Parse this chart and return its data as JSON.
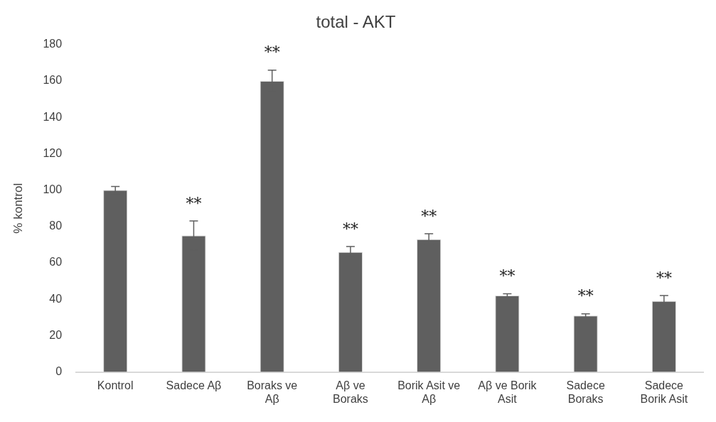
{
  "chart_data": {
    "type": "bar",
    "title": "total - AKT",
    "ylabel": "% kontrol",
    "categories": [
      "Kontrol",
      "Sadece Aβ",
      "Boraks ve Aβ",
      "Aβ ve Boraks",
      "Borik Asit ve Aβ",
      "Aβ ve Borik Asit",
      "Sadece Boraks",
      "Sadece Borik Asit"
    ],
    "values": [
      100,
      75,
      160,
      66,
      73,
      42,
      31,
      39
    ],
    "errors": [
      2,
      8,
      6,
      3,
      3,
      1,
      1,
      3
    ],
    "color": "#5f5f5f",
    "ylim": [
      0,
      180
    ],
    "yticks": [
      0,
      20,
      40,
      60,
      80,
      100,
      120,
      140,
      160,
      180
    ],
    "grid": false,
    "legend": false,
    "annotations": [
      {
        "text": "**",
        "x": "Sadece Aβ",
        "y": 83
      },
      {
        "text": "**",
        "x": "Boraks ve Aβ",
        "y": 166
      },
      {
        "text": "**",
        "x": "Aβ ve Boraks",
        "y": 69
      },
      {
        "text": "**",
        "x": "Borik Asit ve Aβ",
        "y": 76
      },
      {
        "text": "**",
        "x": "Aβ ve Borik Asit",
        "y": 43
      },
      {
        "text": "**",
        "x": "Sadece Boraks",
        "y": 32
      },
      {
        "text": "**",
        "x": "Sadece Borik Asit",
        "y": 42
      }
    ]
  }
}
